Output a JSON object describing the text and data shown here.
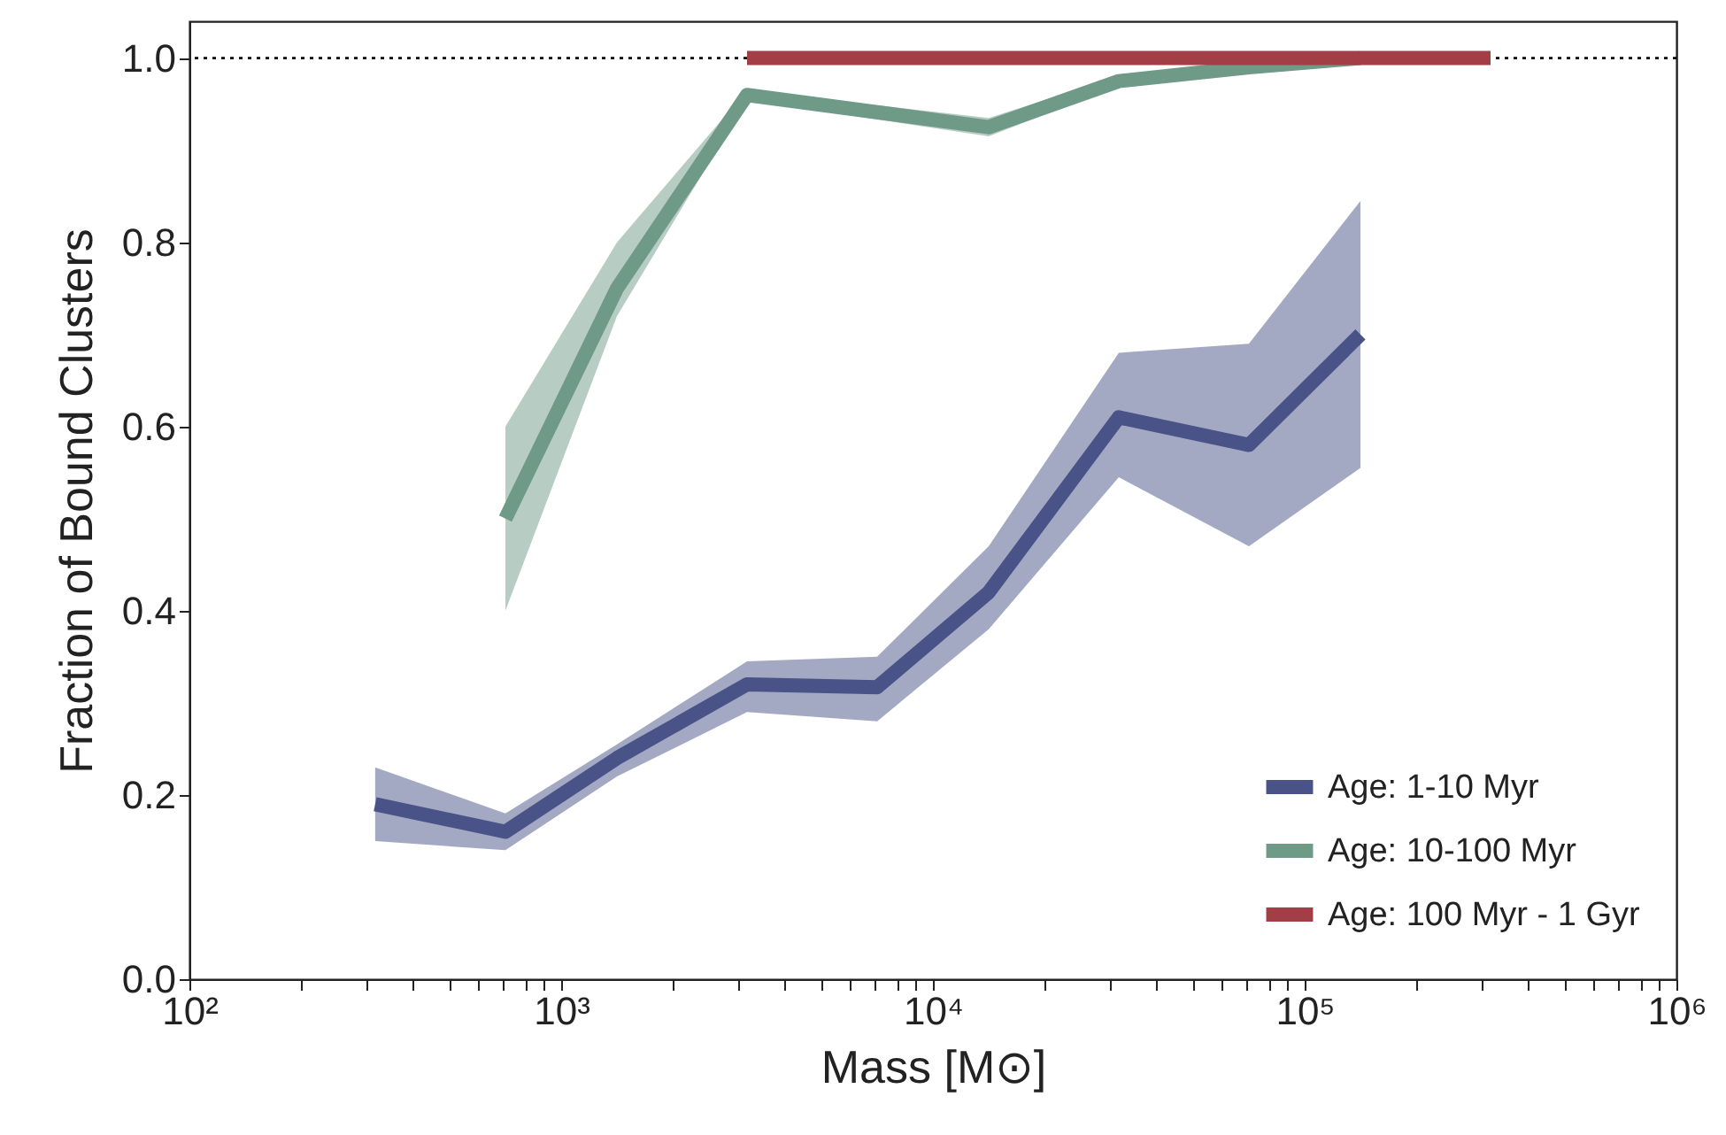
{
  "chart_data": {
    "type": "line",
    "xlabel": "Mass [M⊙]",
    "ylabel": "Fraction of Bound Clusters",
    "log": "x",
    "xlim": [
      100,
      1000000
    ],
    "ylim": [
      0,
      1.04
    ],
    "xticks": [
      {
        "value": 100,
        "label": "10²"
      },
      {
        "value": 200,
        "label": null
      },
      {
        "value": 300,
        "label": null
      },
      {
        "value": 400,
        "label": null
      },
      {
        "value": 500,
        "label": null
      },
      {
        "value": 600,
        "label": null
      },
      {
        "value": 700,
        "label": null
      },
      {
        "value": 800,
        "label": null
      },
      {
        "value": 900,
        "label": null
      },
      {
        "value": 1000,
        "label": "10³"
      },
      {
        "value": 2000,
        "label": null
      },
      {
        "value": 3000,
        "label": null
      },
      {
        "value": 4000,
        "label": null
      },
      {
        "value": 5000,
        "label": null
      },
      {
        "value": 6000,
        "label": null
      },
      {
        "value": 7000,
        "label": null
      },
      {
        "value": 8000,
        "label": null
      },
      {
        "value": 9000,
        "label": null
      },
      {
        "value": 10000,
        "label": "10⁴"
      },
      {
        "value": 20000,
        "label": null
      },
      {
        "value": 30000,
        "label": null
      },
      {
        "value": 40000,
        "label": null
      },
      {
        "value": 50000,
        "label": null
      },
      {
        "value": 60000,
        "label": null
      },
      {
        "value": 70000,
        "label": null
      },
      {
        "value": 80000,
        "label": null
      },
      {
        "value": 90000,
        "label": null
      },
      {
        "value": 100000,
        "label": "10⁵"
      },
      {
        "value": 200000,
        "label": null
      },
      {
        "value": 300000,
        "label": null
      },
      {
        "value": 400000,
        "label": null
      },
      {
        "value": 500000,
        "label": null
      },
      {
        "value": 600000,
        "label": null
      },
      {
        "value": 700000,
        "label": null
      },
      {
        "value": 800000,
        "label": null
      },
      {
        "value": 900000,
        "label": null
      },
      {
        "value": 1000000,
        "label": "10⁶"
      }
    ],
    "yticks": [
      {
        "value": 0,
        "label": "0.0"
      },
      0.2,
      0.4,
      0.6,
      0.8,
      {
        "value": 1,
        "label": "1.0"
      }
    ],
    "grid": false,
    "legend": "bottom right",
    "line_style": "solid",
    "marker": "none",
    "ref_lines": [
      {
        "axis": "y",
        "value": 1,
        "color": "#000000",
        "line_style": "dotted"
      }
    ],
    "series": [
      {
        "name": "Age: 1-10 Myr",
        "color": "#4a5388",
        "x": [
          316,
          708,
          1413,
          3162,
          7079,
          14125,
          31623,
          70795,
          141254
        ],
        "values": [
          0.19,
          0.16,
          0.24,
          0.32,
          0.317,
          0.42,
          0.61,
          0.58,
          0.7
        ],
        "lower": [
          0.15,
          0.14,
          0.22,
          0.29,
          0.28,
          0.38,
          0.545,
          0.47,
          0.555
        ],
        "upper": [
          0.23,
          0.18,
          0.255,
          0.345,
          0.35,
          0.47,
          0.68,
          0.69,
          0.845
        ]
      },
      {
        "name": "Age: 10-100 Myr",
        "color": "#6f9a88",
        "x": [
          708,
          1413,
          3162,
          14125,
          31623,
          70795,
          141254
        ],
        "values": [
          0.5,
          0.75,
          0.96,
          0.925,
          0.975,
          0.99,
          1.0
        ],
        "lower": [
          0.4,
          0.72,
          0.955,
          0.915,
          0.97,
          0.985,
          1.0
        ],
        "upper": [
          0.6,
          0.8,
          0.965,
          0.935,
          0.98,
          0.995,
          1.0
        ]
      },
      {
        "name": "Age: 100 Myr - 1 Gyr",
        "color": "#a23f46",
        "x": [
          3162,
          7079,
          14125,
          31623,
          70795,
          141254,
          316228
        ],
        "values": [
          1.0,
          1.0,
          1.0,
          1.0,
          1.0,
          1.0,
          1.0
        ]
      }
    ]
  }
}
